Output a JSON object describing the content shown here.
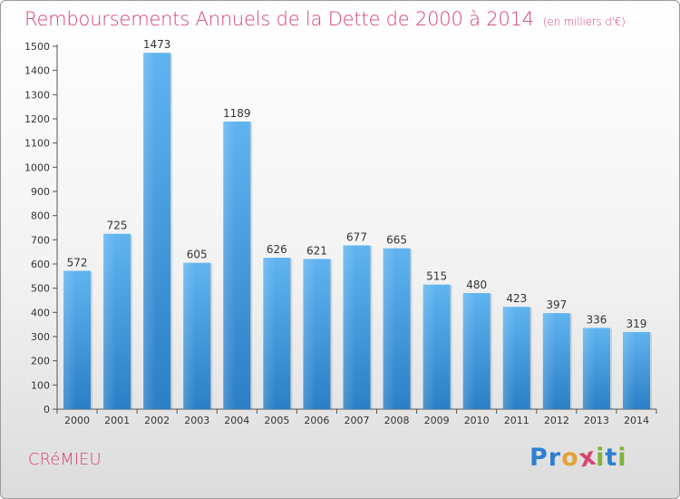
{
  "chart_data": {
    "type": "bar",
    "title": "Remboursements Annuels de la Dette de 2000 à 2014",
    "unit_note": "(en milliers d'€)",
    "categories": [
      "2000",
      "2001",
      "2002",
      "2003",
      "2004",
      "2005",
      "2006",
      "2007",
      "2008",
      "2009",
      "2010",
      "2011",
      "2012",
      "2013",
      "2014"
    ],
    "values": [
      572,
      725,
      1473,
      605,
      1189,
      626,
      621,
      677,
      665,
      515,
      480,
      423,
      397,
      336,
      319
    ],
    "ylim": [
      0,
      1500
    ],
    "yticks": [
      0,
      100,
      200,
      300,
      400,
      500,
      600,
      700,
      800,
      900,
      1000,
      1100,
      1200,
      1300,
      1400,
      1500
    ],
    "xlabel": "",
    "ylabel": "",
    "grid": false,
    "bar_color": "#4aa3e6"
  },
  "footer": {
    "commune": "CRéMIEU",
    "logo_letters": [
      "P",
      "r",
      "o",
      "x",
      "i",
      "t",
      "i"
    ],
    "logo_colors": [
      "#2f7fd0",
      "#2f7fd0",
      "#e5a23a",
      "#d6456e",
      "#7bb53a",
      "#2f7fd0",
      "#7bb53a"
    ]
  },
  "colors": {
    "accent": "#d6456e"
  }
}
